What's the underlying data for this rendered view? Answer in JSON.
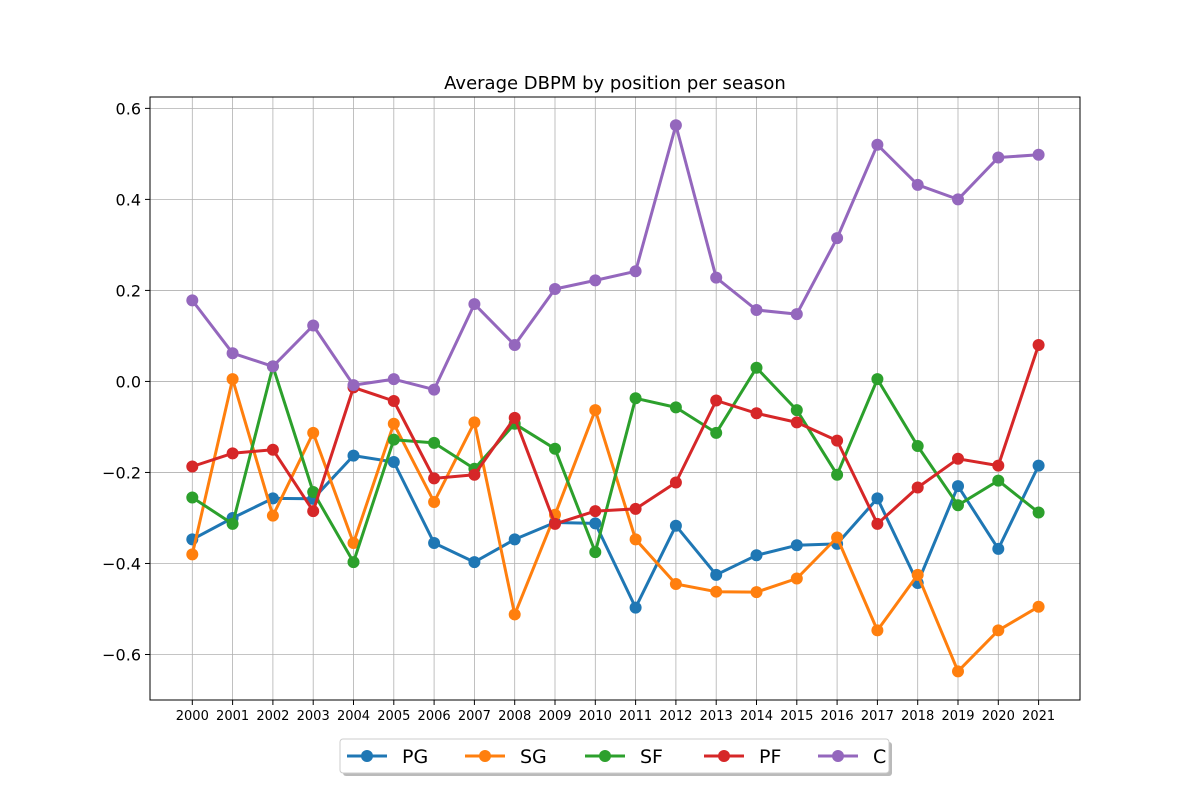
{
  "chart_data": {
    "type": "line",
    "title": "Average DBPM by position per season",
    "xlabel": "",
    "ylabel": "",
    "x": [
      "2000",
      "2001",
      "2002",
      "2003",
      "2004",
      "2005",
      "2006",
      "2007",
      "2008",
      "2009",
      "2010",
      "2011",
      "2012",
      "2013",
      "2014",
      "2015",
      "2016",
      "2017",
      "2018",
      "2019",
      "2020",
      "2021"
    ],
    "ylim": [
      -0.7,
      0.625
    ],
    "yticks": [
      -0.6,
      -0.4,
      -0.2,
      0.0,
      0.2,
      0.4,
      0.6
    ],
    "ytick_labels": [
      "−0.6",
      "−0.4",
      "−0.2",
      "0.0",
      "0.2",
      "0.4",
      "0.6"
    ],
    "grid": true,
    "legend_position": "bottom-center",
    "series": [
      {
        "name": "PG",
        "color": "#1f77b4",
        "values": [
          -0.347,
          -0.3,
          -0.257,
          -0.258,
          -0.163,
          -0.177,
          -0.355,
          -0.397,
          -0.347,
          -0.31,
          -0.312,
          -0.497,
          -0.317,
          -0.425,
          -0.382,
          -0.36,
          -0.357,
          -0.257,
          -0.443,
          -0.23,
          -0.368,
          -0.185
        ]
      },
      {
        "name": "SG",
        "color": "#ff7f0e",
        "values": [
          -0.38,
          0.005,
          -0.295,
          -0.113,
          -0.355,
          -0.093,
          -0.265,
          -0.09,
          -0.512,
          -0.293,
          -0.063,
          -0.347,
          -0.445,
          -0.462,
          -0.463,
          -0.433,
          -0.343,
          -0.547,
          -0.425,
          -0.637,
          -0.547,
          -0.495
        ]
      },
      {
        "name": "SF",
        "color": "#2ca02c",
        "values": [
          -0.255,
          -0.313,
          0.033,
          -0.243,
          -0.397,
          -0.128,
          -0.135,
          -0.192,
          -0.093,
          -0.148,
          -0.375,
          -0.037,
          -0.057,
          -0.113,
          0.03,
          -0.063,
          -0.205,
          0.005,
          -0.142,
          -0.272,
          -0.218,
          -0.288
        ]
      },
      {
        "name": "PF",
        "color": "#d62728",
        "values": [
          -0.187,
          -0.158,
          -0.15,
          -0.285,
          -0.013,
          -0.043,
          -0.213,
          -0.205,
          -0.08,
          -0.313,
          -0.285,
          -0.28,
          -0.222,
          -0.042,
          -0.07,
          -0.09,
          -0.13,
          -0.313,
          -0.233,
          -0.17,
          -0.185,
          0.08
        ]
      },
      {
        "name": "C",
        "color": "#9467bd",
        "values": [
          0.178,
          0.062,
          0.033,
          0.123,
          -0.008,
          0.005,
          -0.018,
          0.17,
          0.08,
          0.203,
          0.222,
          0.242,
          0.563,
          0.228,
          0.157,
          0.148,
          0.315,
          0.52,
          0.432,
          0.4,
          0.492,
          0.498
        ]
      }
    ]
  }
}
